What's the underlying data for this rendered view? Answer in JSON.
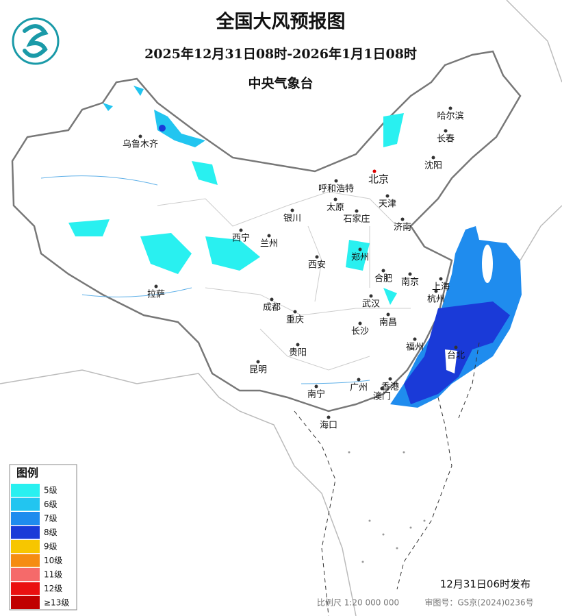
{
  "header": {
    "title": "全国大风预报图",
    "period": "2025年12月31日08时-2026年1月1日08时",
    "agency": "中央气象台"
  },
  "cities": [
    "乌鲁木齐",
    "哈尔滨",
    "长春",
    "沈阳",
    "北京",
    "呼和浩特",
    "天津",
    "太原",
    "石家庄",
    "银川",
    "济南",
    "西宁",
    "兰州",
    "郑州",
    "西安",
    "合肥",
    "南京",
    "上海",
    "杭州",
    "拉萨",
    "成都",
    "武汉",
    "重庆",
    "南昌",
    "长沙",
    "福州",
    "台北",
    "贵阳",
    "昆明",
    "南宁",
    "广州",
    "香港",
    "澳门",
    "海口"
  ],
  "legend": {
    "title": "图例",
    "items": [
      {
        "label": "5级",
        "color": "#29f0f0"
      },
      {
        "label": "6级",
        "color": "#22c5f0"
      },
      {
        "label": "7级",
        "color": "#1f8cee"
      },
      {
        "label": "8级",
        "color": "#1a3ad8"
      },
      {
        "label": "9级",
        "color": "#f7c600"
      },
      {
        "label": "10级",
        "color": "#f58c12"
      },
      {
        "label": "11级",
        "color": "#f56a6a"
      },
      {
        "label": "12级",
        "color": "#ea1010"
      },
      {
        "label": "≥13级",
        "color": "#c00000"
      }
    ]
  },
  "footer": {
    "issued": "12月31日06时发布",
    "scale": "比例尺 1:20 000 000",
    "approval": "审图号：GS京(2024)0236号"
  }
}
